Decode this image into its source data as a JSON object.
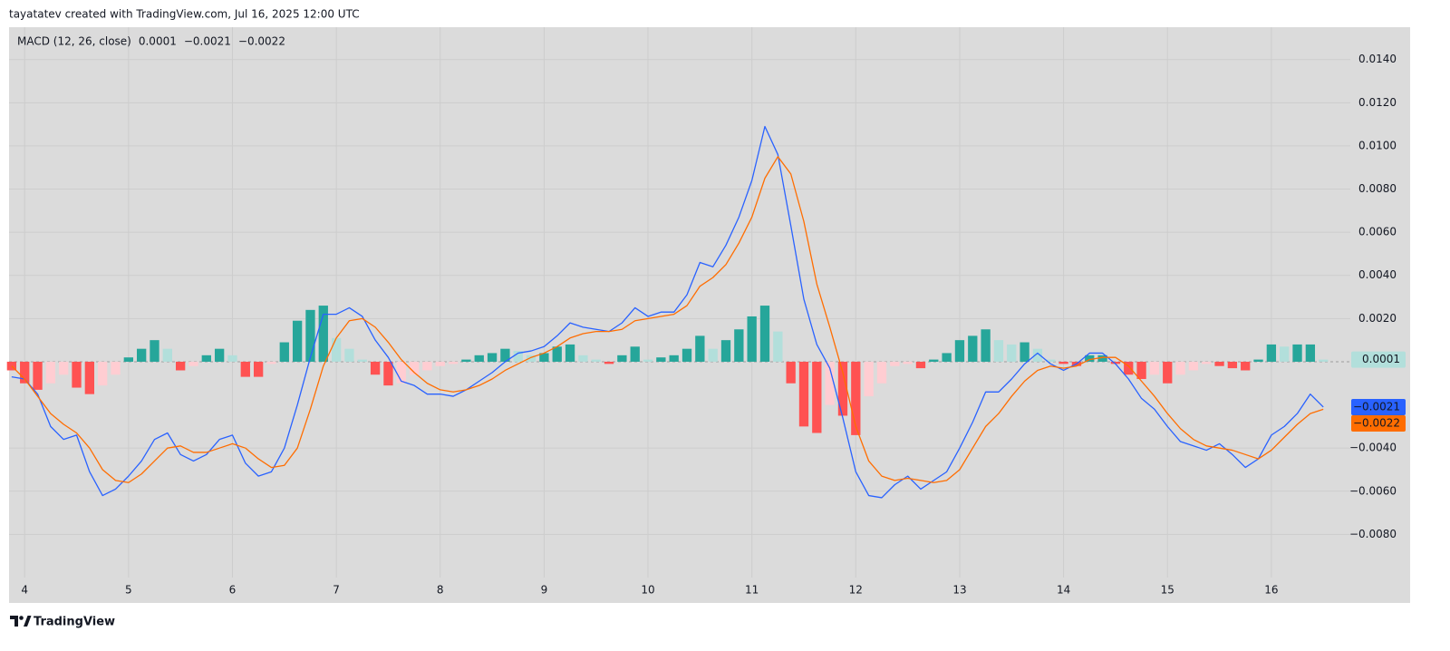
{
  "header": {
    "attribution": "tayatatev created with TradingView.com, Jul 16, 2025 12:00 UTC"
  },
  "footer": {
    "brand": "TradingView"
  },
  "chart_data": {
    "type": "macd",
    "indicator_label": "MACD (12, 26, close)",
    "xlim": [
      3.85,
      16.76
    ],
    "xticks": [
      4,
      5,
      6,
      7,
      8,
      9,
      10,
      11,
      12,
      13,
      14,
      15,
      16
    ],
    "ylim": [
      -0.01,
      0.0155
    ],
    "yticks": [
      {
        "value": 0.014,
        "label": "0.0140"
      },
      {
        "value": 0.012,
        "label": "0.0120"
      },
      {
        "value": 0.01,
        "label": "0.0100"
      },
      {
        "value": 0.008,
        "label": "0.0080"
      },
      {
        "value": 0.006,
        "label": "0.0060"
      },
      {
        "value": 0.004,
        "label": "0.0040"
      },
      {
        "value": 0.002,
        "label": "0.0020"
      },
      {
        "value": -0.004,
        "label": "−0.0040"
      },
      {
        "value": -0.006,
        "label": "−0.0060"
      },
      {
        "value": -0.008,
        "label": "−0.0080"
      }
    ],
    "grid": true,
    "x": [
      3.875,
      4,
      4.125,
      4.25,
      4.375,
      4.5,
      4.625,
      4.75,
      4.875,
      5,
      5.125,
      5.25,
      5.375,
      5.5,
      5.625,
      5.75,
      5.875,
      6,
      6.125,
      6.25,
      6.375,
      6.5,
      6.625,
      6.75,
      6.875,
      7,
      7.125,
      7.25,
      7.375,
      7.5,
      7.625,
      7.75,
      7.875,
      8,
      8.125,
      8.25,
      8.375,
      8.5,
      8.625,
      8.75,
      8.875,
      9,
      9.125,
      9.25,
      9.375,
      9.5,
      9.625,
      9.75,
      9.875,
      10,
      10.125,
      10.25,
      10.375,
      10.5,
      10.625,
      10.75,
      10.875,
      11,
      11.125,
      11.25,
      11.375,
      11.5,
      11.625,
      11.75,
      11.875,
      12,
      12.125,
      12.25,
      12.375,
      12.5,
      12.625,
      12.75,
      12.875,
      13,
      13.125,
      13.25,
      13.375,
      13.5,
      13.625,
      13.75,
      13.875,
      14,
      14.125,
      14.25,
      14.375,
      14.5,
      14.625,
      14.75,
      14.875,
      15,
      15.125,
      15.25,
      15.375,
      15.5,
      15.625,
      15.75,
      15.875,
      16,
      16.125,
      16.25,
      16.375,
      16.5
    ],
    "series": [
      {
        "kind": "line",
        "color": "#2962ff",
        "last_value_label": "−0.0021",
        "values": [
          -0.0007,
          -0.0008,
          -0.0015,
          -0.003,
          -0.0036,
          -0.0034,
          -0.0051,
          -0.0062,
          -0.0059,
          -0.0053,
          -0.0046,
          -0.0036,
          -0.0033,
          -0.0043,
          -0.0046,
          -0.0043,
          -0.0036,
          -0.0034,
          -0.0047,
          -0.0053,
          -0.0051,
          -0.004,
          -0.002,
          0.0002,
          0.0022,
          0.0022,
          0.0025,
          0.0021,
          0.001,
          0.0002,
          -0.0009,
          -0.0011,
          -0.0015,
          -0.0015,
          -0.0016,
          -0.0013,
          -0.0009,
          -0.0005,
          0.0,
          0.0004,
          0.0005,
          0.0007,
          0.0012,
          0.0018,
          0.0016,
          0.0015,
          0.0014,
          0.0018,
          0.0025,
          0.0021,
          0.0023,
          0.0023,
          0.0031,
          0.0046,
          0.0044,
          0.0054,
          0.0067,
          0.0084,
          0.0109,
          0.0096,
          0.0063,
          0.0029,
          0.0008,
          -0.0003,
          -0.0026,
          -0.0051,
          -0.0062,
          -0.0063,
          -0.0057,
          -0.0053,
          -0.0059,
          -0.0055,
          -0.0051,
          -0.004,
          -0.0028,
          -0.0014,
          -0.0014,
          -0.0008,
          -0.0001,
          0.0004,
          -0.0001,
          -0.0004,
          -0.0001,
          0.0004,
          0.0004,
          -0.0001,
          -0.0008,
          -0.0017,
          -0.0022,
          -0.003,
          -0.0037,
          -0.0039,
          -0.0041,
          -0.0038,
          -0.0043,
          -0.0049,
          -0.0045,
          -0.0034,
          -0.003,
          -0.0024,
          -0.0015,
          -0.0021
        ]
      },
      {
        "kind": "line",
        "color": "#ff6d00",
        "last_value_label": "−0.0022",
        "values": [
          -0.0002,
          -0.0008,
          -0.0016,
          -0.0024,
          -0.0029,
          -0.0033,
          -0.004,
          -0.005,
          -0.0055,
          -0.0056,
          -0.0052,
          -0.0046,
          -0.004,
          -0.0039,
          -0.0042,
          -0.0042,
          -0.004,
          -0.0038,
          -0.004,
          -0.0045,
          -0.0049,
          -0.0048,
          -0.004,
          -0.0022,
          -0.0002,
          0.0011,
          0.0019,
          0.002,
          0.0016,
          0.0009,
          0.0001,
          -0.0005,
          -0.001,
          -0.0013,
          -0.0014,
          -0.0013,
          -0.0011,
          -0.0008,
          -0.0004,
          -0.0001,
          0.0002,
          0.0004,
          0.0007,
          0.0011,
          0.0013,
          0.0014,
          0.0014,
          0.0015,
          0.0019,
          0.002,
          0.0021,
          0.0022,
          0.0026,
          0.0035,
          0.0039,
          0.0045,
          0.0055,
          0.0067,
          0.0085,
          0.0095,
          0.0087,
          0.0065,
          0.0036,
          0.0016,
          -0.0005,
          -0.003,
          -0.0046,
          -0.0053,
          -0.0055,
          -0.0054,
          -0.0055,
          -0.0056,
          -0.0055,
          -0.005,
          -0.004,
          -0.003,
          -0.0024,
          -0.0016,
          -0.0009,
          -0.0004,
          -0.0002,
          -0.0003,
          -0.0002,
          0.0001,
          0.0002,
          0.0002,
          -0.0002,
          -0.0009,
          -0.0016,
          -0.0024,
          -0.0031,
          -0.0036,
          -0.0039,
          -0.004,
          -0.0041,
          -0.0043,
          -0.0045,
          -0.0041,
          -0.0035,
          -0.0029,
          -0.0024,
          -0.0022
        ]
      },
      {
        "kind": "histogram",
        "color": "#b2dfdb",
        "last_value_label": "0.0001",
        "colors": {
          "up_rising": "#26a69a",
          "up_falling": "#b2dfdb",
          "down_falling": "#ff5252",
          "down_rising": "#ffcdd2"
        },
        "values": [
          -0.0004,
          -0.001,
          -0.0013,
          -0.001,
          -0.0006,
          -0.0012,
          -0.0015,
          -0.0011,
          -0.0006,
          0.0002,
          0.0006,
          0.001,
          0.0006,
          -0.0004,
          -0.0002,
          0.0003,
          0.0006,
          0.0003,
          -0.0007,
          -0.0007,
          -0.0001,
          0.0009,
          0.0019,
          0.0024,
          0.0026,
          0.0011,
          0.0006,
          0.0001,
          -0.0006,
          -0.0011,
          -0.001,
          -0.0006,
          -0.0004,
          -0.0002,
          -0.0001,
          0.0001,
          0.0003,
          0.0004,
          0.0006,
          0.0005,
          0.0003,
          0.0004,
          0.0007,
          0.0008,
          0.0003,
          0.0001,
          -0.0001,
          0.0003,
          0.0007,
          0.0001,
          0.0002,
          0.0003,
          0.0006,
          0.0012,
          0.0006,
          0.001,
          0.0015,
          0.0021,
          0.0026,
          0.0014,
          -0.001,
          -0.003,
          -0.0033,
          -0.002,
          -0.0025,
          -0.0034,
          -0.0016,
          -0.001,
          -0.0002,
          -0.0001,
          -0.0003,
          0.0001,
          0.0004,
          0.001,
          0.0012,
          0.0015,
          0.001,
          0.0008,
          0.0009,
          0.0006,
          0.0001,
          -0.0001,
          -0.0002,
          0.0003,
          0.0003,
          -0.0001,
          -0.0006,
          -0.0008,
          -0.0006,
          -0.001,
          -0.0006,
          -0.0004,
          -0.0001,
          -0.0002,
          -0.0003,
          -0.0004,
          0.0001,
          0.0008,
          0.0007,
          0.0008,
          0.0008,
          0.0001
        ]
      }
    ]
  }
}
